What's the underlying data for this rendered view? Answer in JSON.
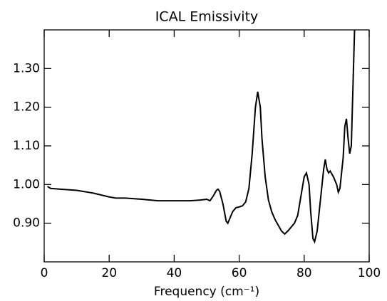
{
  "chart_data": {
    "type": "line",
    "title": "ICAL Emissivity",
    "x_label": "Frequency (cm⁻¹)",
    "xlim": [
      0,
      100
    ],
    "xticks": [
      0,
      20,
      40,
      60,
      80,
      100
    ],
    "ylim": [
      0.8,
      1.4
    ],
    "yticks": [
      {
        "value": 0.9,
        "label": "0.90"
      },
      {
        "value": 1.0,
        "label": "1.00"
      },
      {
        "value": 1.1,
        "label": "1.10"
      },
      {
        "value": 1.2,
        "label": "1.20"
      },
      {
        "value": 1.3,
        "label": "1.30"
      }
    ],
    "series": [
      {
        "color": "#000000",
        "x": [
          1,
          2,
          5,
          10,
          15,
          20,
          22,
          25,
          30,
          35,
          40,
          45,
          48,
          50,
          51,
          52,
          53,
          53.5,
          54,
          55,
          56,
          56.5,
          57,
          58,
          59,
          60,
          61,
          62,
          63,
          64,
          65,
          65.7,
          66.5,
          67,
          68,
          69,
          70,
          71,
          72,
          73,
          74,
          75,
          76,
          77,
          78,
          79,
          80,
          80.7,
          81.5,
          82,
          82.7,
          83.2,
          84,
          85,
          86,
          86.5,
          87,
          87.5,
          88,
          89,
          90,
          90.5,
          91,
          91.5,
          92,
          92.5,
          93,
          93.5,
          94,
          94.5,
          95,
          95.5
        ],
        "values": [
          0.995,
          0.99,
          0.988,
          0.985,
          0.978,
          0.968,
          0.965,
          0.965,
          0.962,
          0.958,
          0.958,
          0.958,
          0.96,
          0.962,
          0.958,
          0.97,
          0.985,
          0.988,
          0.982,
          0.95,
          0.905,
          0.9,
          0.91,
          0.93,
          0.94,
          0.942,
          0.945,
          0.955,
          0.99,
          1.08,
          1.2,
          1.24,
          1.2,
          1.12,
          1.02,
          0.96,
          0.93,
          0.91,
          0.895,
          0.88,
          0.872,
          0.88,
          0.89,
          0.9,
          0.92,
          0.97,
          1.02,
          1.03,
          1.0,
          0.93,
          0.86,
          0.852,
          0.88,
          0.96,
          1.04,
          1.065,
          1.04,
          1.03,
          1.035,
          1.02,
          1.0,
          0.98,
          0.99,
          1.03,
          1.07,
          1.15,
          1.17,
          1.12,
          1.08,
          1.1,
          1.25,
          1.4
        ]
      }
    ]
  }
}
